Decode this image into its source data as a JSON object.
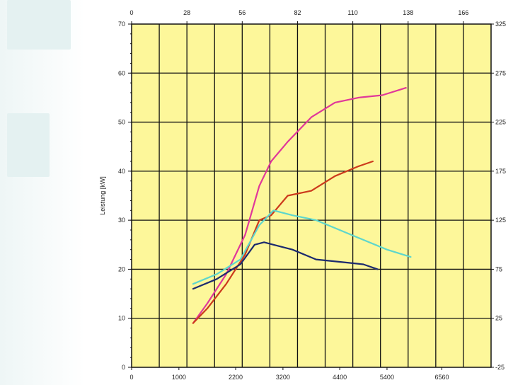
{
  "chart_data": {
    "type": "line",
    "title": "",
    "ylabel": "Leistung [kW]",
    "xlabel_bottom": "",
    "xlabel_top": "",
    "ylabel_right": "",
    "ylim": [
      0,
      70
    ],
    "xlim_bottom": [
      0,
      7600
    ],
    "grid": true,
    "background": "#fdf79a",
    "y_ticks": [
      "0",
      "10",
      "20",
      "30",
      "40",
      "50",
      "60",
      "70"
    ],
    "bottom_ticks": [
      {
        "label": "0",
        "value": 0
      },
      {
        "label": "1000",
        "value": 1000
      },
      {
        "label": "2200",
        "value": 2200
      },
      {
        "label": "3200",
        "value": 3200
      },
      {
        "label": "4400",
        "value": 4400
      },
      {
        "label": "5400",
        "value": 5400
      },
      {
        "label": "6560",
        "value": 6560
      }
    ],
    "top_ticks": [
      "0",
      "28",
      "56",
      "82",
      "110",
      "138",
      "166"
    ],
    "right_ticks": [
      "-25",
      "25",
      "75",
      "125",
      "175",
      "225",
      "275",
      "325"
    ],
    "series": [
      {
        "color": "#e0389a",
        "x": [
          1300,
          1600,
          2000,
          2400,
          2700,
          2950,
          3300,
          3800,
          4300,
          4800,
          5300,
          5800
        ],
        "y": [
          9,
          13,
          19,
          27,
          37,
          42,
          46,
          51,
          54,
          55,
          55.5,
          57
        ]
      },
      {
        "color": "#cc3a1c",
        "x": [
          1300,
          1600,
          2000,
          2400,
          2700,
          2950,
          3300,
          3800,
          4300,
          4800,
          5100
        ],
        "y": [
          9,
          12,
          17,
          23,
          30,
          31,
          35,
          36,
          39,
          41,
          42
        ]
      },
      {
        "color": "#5ed6cc",
        "x": [
          1300,
          1800,
          2300,
          2700,
          3000,
          3400,
          3900,
          4400,
          4900,
          5400,
          5900
        ],
        "y": [
          17,
          19,
          22,
          29,
          32,
          31,
          30,
          28,
          26,
          24,
          22.5
        ]
      },
      {
        "color": "#1c2a6e",
        "x": [
          1300,
          1800,
          2300,
          2600,
          2800,
          3000,
          3400,
          3900,
          4400,
          4900,
          5200
        ],
        "y": [
          16,
          18,
          21,
          25,
          25.5,
          25,
          24,
          22,
          21.5,
          21,
          20
        ]
      }
    ]
  }
}
